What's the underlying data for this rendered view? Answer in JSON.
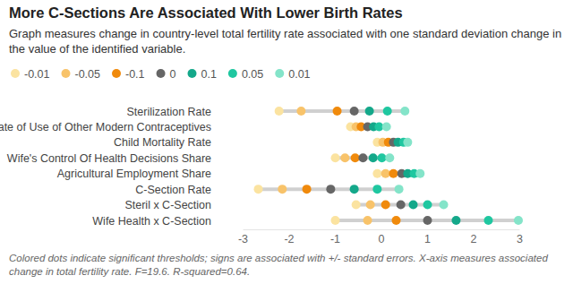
{
  "chart_data": {
    "type": "dot_range",
    "title": "More C-Sections Are Associated With Lower Birth Rates",
    "subtitle": "Graph measures change in country-level total fertility rate associated with one standard deviation change in the value of the identified variable.",
    "annotations": [
      "Colored dots indicate significant thresholds; signs are associated with +/- standard errors. X-axis measures associated change in total fertility rate. F=19.6. R-squared=0.64."
    ],
    "orientation": "horizontal",
    "legend": "top-left",
    "categories": [
      "Sterilization Rate",
      "Rate of Use of Other Modern Contraceptives",
      "Child Mortality Rate",
      "Wife's Control Of Health Decisions Share",
      "Agricultural Employment Share",
      "C-Section Rate",
      "Steril x C-Section",
      "Wife Health x C-Section"
    ],
    "series": [
      {
        "name": "-0.01",
        "color": "#fbe3a0",
        "values": [
          -2.21,
          -0.66,
          -0.08,
          -0.99,
          -0.08,
          -2.66,
          -0.54,
          -0.99
        ]
      },
      {
        "name": "-0.05",
        "color": "#f8c36a",
        "values": [
          -1.73,
          -0.54,
          0.04,
          -0.78,
          0.1,
          -2.14,
          -0.23,
          -0.29
        ]
      },
      {
        "name": "-0.1",
        "color": "#f08a0c",
        "values": [
          -0.95,
          -0.43,
          0.16,
          -0.56,
          0.27,
          -1.61,
          0.1,
          0.33
        ]
      },
      {
        "name": "0",
        "color": "#666666",
        "values": [
          -0.58,
          -0.29,
          0.27,
          -0.39,
          0.45,
          -1.09,
          0.43,
          1.01
        ]
      },
      {
        "name": "0.1",
        "color": "#14a88a",
        "values": [
          -0.25,
          -0.16,
          0.37,
          -0.17,
          0.58,
          -0.58,
          0.7,
          1.63
        ]
      },
      {
        "name": "0.05",
        "color": "#1fc7a0",
        "values": [
          0.14,
          -0.04,
          0.49,
          0.02,
          0.72,
          -0.08,
          1.01,
          2.33
        ]
      },
      {
        "name": "0.01",
        "color": "#84e4c9",
        "values": [
          0.52,
          0.12,
          0.58,
          0.19,
          0.85,
          0.39,
          1.36,
          2.98
        ]
      }
    ],
    "xlim": [
      -3,
      3
    ],
    "xticks": [
      -3,
      -2,
      -1,
      0,
      1,
      2,
      3
    ]
  }
}
